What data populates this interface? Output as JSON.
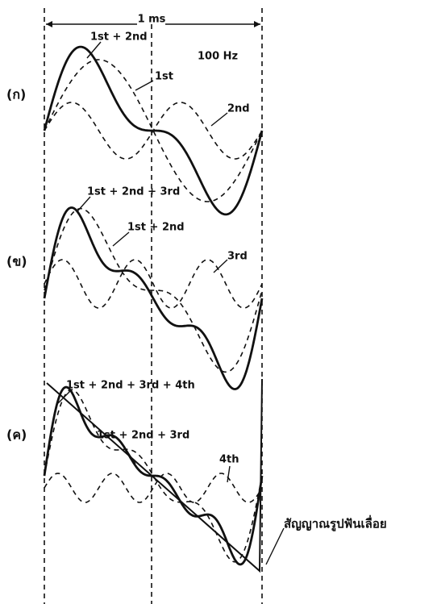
{
  "header": {
    "duration": "1 ms",
    "frequency": "100 Hz"
  },
  "panels": [
    {
      "label": "(ก)",
      "curve_labels": [
        "1st + 2nd",
        "1st",
        "2nd"
      ]
    },
    {
      "label": "(ข)",
      "curve_labels": [
        "1st + 2nd + 3rd",
        "1st + 2nd",
        "3rd"
      ]
    },
    {
      "label": "(ค)",
      "curve_labels": [
        "1st + 2nd + 3rd + 4th",
        "1st + 2nd + 3rd",
        "4th",
        "สัญญาณรูปฟันเลื่อย"
      ]
    }
  ]
}
